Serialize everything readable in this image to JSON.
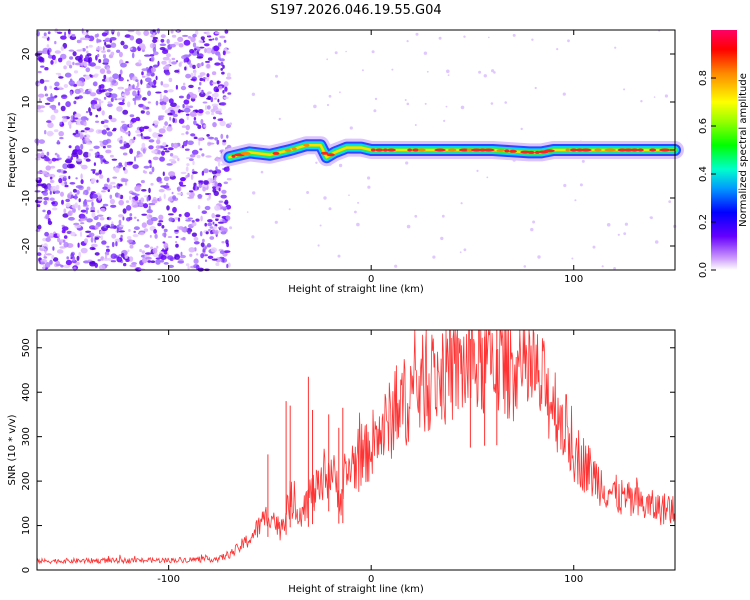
{
  "title": "S197.2026.046.19.55.G04",
  "chart_data": [
    {
      "type": "heatmap",
      "xlabel": "Height of straight line (km)",
      "ylabel": "Frequency (Hz)",
      "xlim": [
        -165,
        150
      ],
      "ylim": [
        -25,
        25
      ],
      "xticks": [
        -100,
        0,
        100
      ],
      "xtick_labels": [
        "-100",
        "0",
        "100"
      ],
      "yticks": [
        -20,
        -10,
        0,
        10,
        20
      ],
      "ytick_labels": [
        "-20",
        "-10",
        "0",
        "10",
        "20"
      ],
      "noise_region_x": [
        -165,
        -70
      ],
      "signal_track": {
        "x": [
          -70,
          -60,
          -50,
          -40,
          -32,
          -25,
          -22,
          -18,
          -12,
          -5,
          0,
          20,
          40,
          60,
          78,
          84,
          90,
          100,
          120,
          150
        ],
        "frequency": [
          -1.5,
          -0.5,
          -1.0,
          0.0,
          1.0,
          1.0,
          -1.5,
          -0.5,
          0.5,
          0.5,
          0.0,
          0.0,
          0.0,
          0.0,
          -0.5,
          -0.5,
          0.0,
          0.0,
          0.0,
          0.0
        ]
      },
      "colorbar": {
        "label": "Normalized spectral amplitude",
        "ticks": [
          0.0,
          0.2,
          0.4,
          0.6,
          0.8
        ],
        "tick_labels": [
          "0.0",
          "0.2",
          "0.4",
          "0.6",
          "0.8"
        ],
        "range": [
          0,
          1
        ]
      }
    },
    {
      "type": "line",
      "xlabel": "Height of straight line (km)",
      "ylabel": "SNR (10 * v/v)",
      "xlim": [
        -165,
        150
      ],
      "ylim": [
        0,
        540
      ],
      "xticks": [
        -100,
        0,
        100
      ],
      "xtick_labels": [
        "-100",
        "0",
        "100"
      ],
      "yticks": [
        0,
        100,
        200,
        300,
        400,
        500
      ],
      "ytick_labels": [
        "0",
        "100",
        "200",
        "300",
        "400",
        "500"
      ],
      "color": "#ff3333",
      "envelope": {
        "x": [
          -165,
          -100,
          -75,
          -68,
          -60,
          -55,
          -50,
          -45,
          -40,
          -35,
          -30,
          -25,
          -20,
          -15,
          -10,
          -5,
          0,
          10,
          20,
          30,
          40,
          50,
          60,
          70,
          80,
          90,
          95,
          100,
          110,
          120,
          130,
          140,
          150
        ],
        "y": [
          20,
          22,
          25,
          40,
          70,
          100,
          130,
          90,
          160,
          130,
          170,
          180,
          230,
          160,
          240,
          240,
          280,
          340,
          400,
          430,
          450,
          460,
          470,
          460,
          440,
          380,
          330,
          270,
          210,
          170,
          150,
          140,
          135
        ]
      },
      "spikes": [
        {
          "x": -51,
          "y": 260
        },
        {
          "x": -42,
          "y": 380
        },
        {
          "x": -40,
          "y": 370
        },
        {
          "x": -31,
          "y": 435
        },
        {
          "x": -29,
          "y": 360
        },
        {
          "x": -21,
          "y": 350
        },
        {
          "x": -16,
          "y": 320
        },
        {
          "x": -14,
          "y": 365
        },
        {
          "x": 62,
          "y": 540
        },
        {
          "x": 56,
          "y": 525
        },
        {
          "x": 49,
          "y": 520
        }
      ]
    }
  ]
}
